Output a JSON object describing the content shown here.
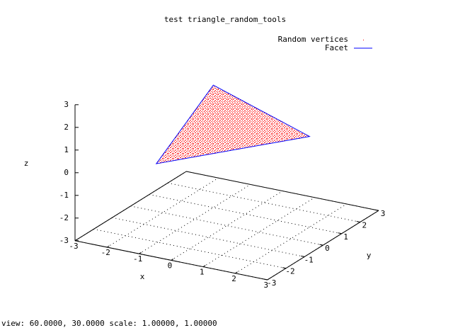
{
  "chart_data": {
    "type": "scatter3d",
    "title": "test triangle_random_tools",
    "series": [
      {
        "name": "Random vertices",
        "color": "#ff0000"
      },
      {
        "name": "Facet",
        "color": "#0000ff",
        "x": [
          -1,
          2,
          -2.2
        ],
        "y": [
          1,
          1,
          0
        ],
        "z": [
          2.4,
          1,
          -0.9
        ]
      }
    ],
    "xlabel": "x",
    "ylabel": "y",
    "zlabel": "z",
    "xlim": [
      -3,
      3
    ],
    "ylim": [
      -3,
      3
    ],
    "zlim": [
      -3,
      3
    ],
    "xticks": [
      -3,
      -2,
      -1,
      0,
      1,
      2,
      3
    ],
    "yticks": [
      -3,
      -2,
      -1,
      0,
      1,
      2,
      3
    ],
    "zticks": [
      -3,
      -2,
      -1,
      0,
      1,
      2,
      3
    ],
    "grid": true,
    "legend": "top-right",
    "status": "view:  60.0000,  30.0000   scale:  1.00000,  1.00000"
  }
}
